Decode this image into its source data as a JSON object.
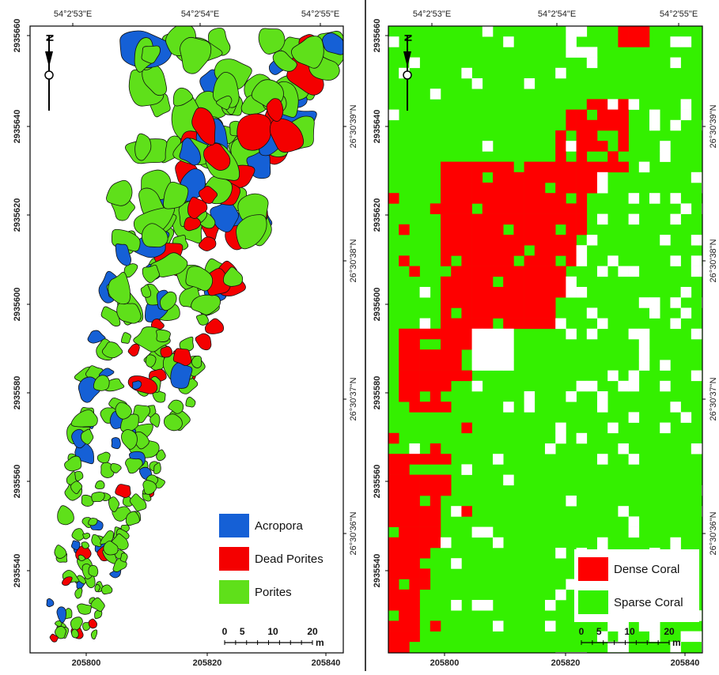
{
  "left_map": {
    "top_labels": [
      "54°2'53\"E",
      "54°2'54\"E",
      "54°2'55\"E"
    ],
    "left_labels": [
      "2935660",
      "2935640",
      "2935620",
      "2935600",
      "2935580",
      "2935560",
      "2935540"
    ],
    "right_labels": [
      "26°30'39\"N",
      "26°30'38\"N",
      "26°30'37\"N",
      "26°30'36\"N"
    ],
    "bottom_labels": [
      "205800",
      "205820",
      "205840"
    ],
    "north": "N",
    "legend": [
      {
        "label": "Acropora",
        "color": "#1560d6"
      },
      {
        "label": "Dead Porites",
        "color": "#f40000"
      },
      {
        "label": "Porites",
        "color": "#5fe01a"
      }
    ],
    "scale": {
      "labels": [
        "0",
        "5",
        "10",
        "20"
      ],
      "unit": "m"
    }
  },
  "right_map": {
    "top_labels": [
      "54°2'53\"E",
      "54°2'54\"E",
      "54°2'55\"E"
    ],
    "left_labels": [
      "2935660",
      "2935640",
      "2935620",
      "2935600",
      "2935580",
      "2935560",
      "2935540"
    ],
    "right_labels": [
      "26°30'39\"N",
      "26°30'38\"N",
      "26°30'37\"N",
      "26°30'36\"N"
    ],
    "bottom_labels": [
      "205800",
      "205820",
      "205840"
    ],
    "north": "N",
    "legend": [
      {
        "label": "Dense Coral",
        "color": "#fe0000"
      },
      {
        "label": "Sparse Coral",
        "color": "#34f000"
      }
    ],
    "scale": {
      "labels": [
        "0",
        "5",
        "10",
        "20"
      ],
      "unit": "m"
    }
  }
}
